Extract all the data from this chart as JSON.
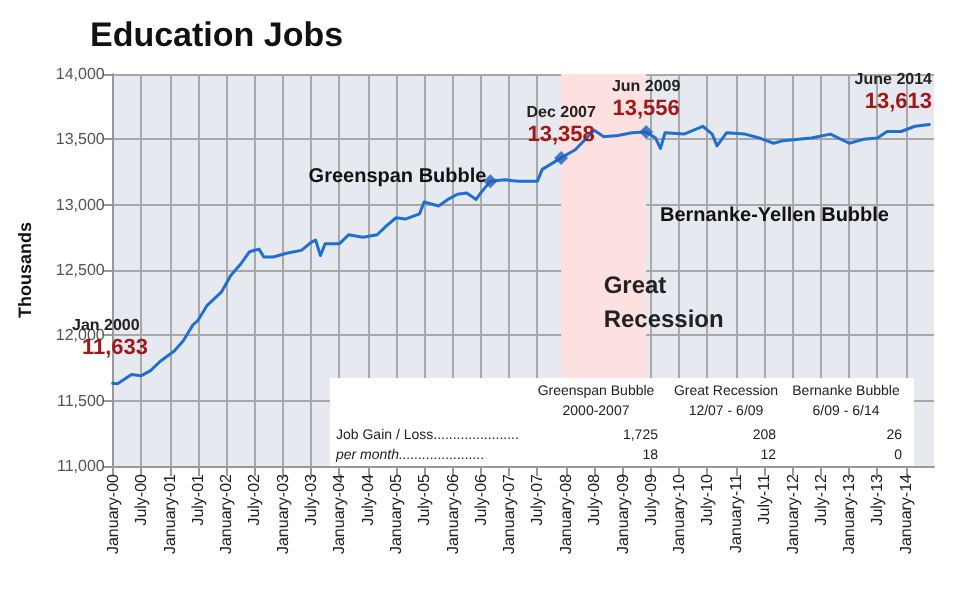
{
  "chart_data": {
    "type": "line",
    "title": "Education Jobs",
    "ylabel": "Thousands",
    "xlim": [
      "2000-01",
      "2014-07"
    ],
    "xticks": [
      {
        "value": "2000-01",
        "label": "January-00"
      },
      {
        "value": "2000-07",
        "label": "July-00"
      },
      {
        "value": "2001-01",
        "label": "January-01"
      },
      {
        "value": "2001-07",
        "label": "July-01"
      },
      {
        "value": "2002-01",
        "label": "January-02"
      },
      {
        "value": "2002-07",
        "label": "July-02"
      },
      {
        "value": "2003-01",
        "label": "January-03"
      },
      {
        "value": "2003-07",
        "label": "July-03"
      },
      {
        "value": "2004-01",
        "label": "January-04"
      },
      {
        "value": "2004-07",
        "label": "July-04"
      },
      {
        "value": "2005-01",
        "label": "January-05"
      },
      {
        "value": "2005-07",
        "label": "July-05"
      },
      {
        "value": "2006-01",
        "label": "January-06"
      },
      {
        "value": "2006-07",
        "label": "July-06"
      },
      {
        "value": "2007-01",
        "label": "January-07"
      },
      {
        "value": "2007-07",
        "label": "July-07"
      },
      {
        "value": "2008-01",
        "label": "January-08"
      },
      {
        "value": "2008-07",
        "label": "July-08"
      },
      {
        "value": "2009-01",
        "label": "January-09"
      },
      {
        "value": "2009-07",
        "label": "July-09"
      },
      {
        "value": "2010-01",
        "label": "January-10"
      },
      {
        "value": "2010-07",
        "label": "July-10"
      },
      {
        "value": "2011-01",
        "label": "January-11"
      },
      {
        "value": "2011-07",
        "label": "July-11"
      },
      {
        "value": "2012-01",
        "label": "January-12"
      },
      {
        "value": "2012-07",
        "label": "July-12"
      },
      {
        "value": "2013-01",
        "label": "January-13"
      },
      {
        "value": "2013-07",
        "label": "July-13"
      },
      {
        "value": "2014-01",
        "label": "January-14"
      }
    ],
    "ylim": [
      11000,
      14000
    ],
    "yticks": [
      {
        "value": 11000,
        "label": "11,000"
      },
      {
        "value": 11500,
        "label": "11,500"
      },
      {
        "value": 12000,
        "label": "12,000"
      },
      {
        "value": 12500,
        "label": "12,500"
      },
      {
        "value": 13000,
        "label": "13,000"
      },
      {
        "value": 13500,
        "label": "13,500"
      },
      {
        "value": 14000,
        "label": "14,000"
      }
    ],
    "grid": true,
    "series": [
      {
        "color": "#1f6fd0",
        "marker": "none",
        "line_style": "solid",
        "x": [
          "2000-01",
          "2000-02",
          "2000-05",
          "2000-07",
          "2000-09",
          "2000-11",
          "2001-02",
          "2001-04",
          "2001-06",
          "2001-07",
          "2001-09",
          "2001-12",
          "2002-02",
          "2002-04",
          "2002-06",
          "2002-08",
          "2002-09",
          "2002-11",
          "2003-02",
          "2003-05",
          "2003-07",
          "2003-08",
          "2003-09",
          "2003-10",
          "2004-01",
          "2004-03",
          "2004-06",
          "2004-09",
          "2004-11",
          "2005-01",
          "2005-03",
          "2005-06",
          "2005-07",
          "2005-10",
          "2005-12",
          "2006-02",
          "2006-04",
          "2006-06",
          "2006-07",
          "2006-09",
          "2006-12",
          "2007-03",
          "2007-07",
          "2007-08",
          "2007-12",
          "2008-03",
          "2008-07",
          "2008-09",
          "2008-12",
          "2009-03",
          "2009-06",
          "2009-08",
          "2009-09",
          "2009-10",
          "2010-02",
          "2010-06",
          "2010-08",
          "2010-09",
          "2010-11",
          "2011-03",
          "2011-06",
          "2011-09",
          "2011-11",
          "2012-05",
          "2012-09",
          "2013-01",
          "2013-04",
          "2013-07",
          "2013-09",
          "2013-12",
          "2014-03",
          "2014-06"
        ],
        "values": [
          11633,
          11630,
          11700,
          11690,
          11730,
          11800,
          11880,
          11960,
          12080,
          12110,
          12230,
          12330,
          12460,
          12540,
          12640,
          12660,
          12600,
          12600,
          12630,
          12650,
          12710,
          12730,
          12610,
          12700,
          12700,
          12770,
          12750,
          12770,
          12840,
          12900,
          12890,
          12930,
          13020,
          12990,
          13040,
          13080,
          13090,
          13040,
          13090,
          13180,
          13190,
          13180,
          13180,
          13270,
          13358,
          13420,
          13570,
          13520,
          13530,
          13550,
          13556,
          13510,
          13430,
          13550,
          13540,
          13600,
          13540,
          13450,
          13550,
          13540,
          13510,
          13470,
          13490,
          13510,
          13540,
          13470,
          13500,
          13510,
          13560,
          13560,
          13600,
          13613
        ]
      },
      {
        "type": "scatter",
        "color": "#1f5fbf",
        "marker": "diamond",
        "x": [
          "2006-09",
          "2007-12",
          "2009-06"
        ],
        "values": [
          13180,
          13358,
          13556
        ]
      }
    ],
    "bands": [
      {
        "axis": "x",
        "from": "2007-12",
        "to": "2009-06",
        "label": "Great Recession",
        "color": "#fde0e0"
      }
    ],
    "annotations": [
      {
        "text": "11,633",
        "x": "2000-01",
        "y": 11633
      },
      {
        "text": "13,358",
        "x": "2007-12",
        "y": 13358
      },
      {
        "text": "13,556",
        "x": "2009-06",
        "y": 13556
      },
      {
        "text": "13,613",
        "x": "2014-06",
        "y": 13613
      },
      "Jan 2000",
      "Dec 2007",
      "Jun 2009",
      "June 2014",
      "Greenspan Bubble",
      "Bernanke-Yellen Bubble",
      "Greenspan Bubble",
      "Great Recession",
      "Bernanke Bubble",
      "2000-2007",
      "12/07 - 6/09",
      "6/09 - 6/14",
      "Job Gain / Loss......................",
      "1,725",
      "208",
      "26",
      "per month......................",
      "18",
      "12",
      "0"
    ]
  }
}
